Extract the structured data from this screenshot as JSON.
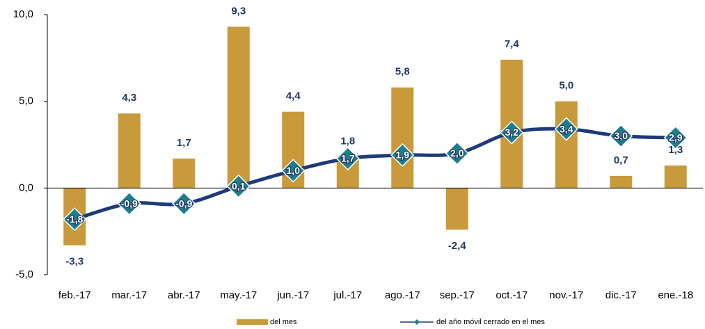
{
  "chart_data": {
    "type": "bar",
    "categories": [
      "feb.-17",
      "mar.-17",
      "abr.-17",
      "may.-17",
      "jun.-17",
      "jul.-17",
      "ago.-17",
      "sep.-17",
      "oct.-17",
      "nov.-17",
      "dic.-17",
      "ene.-18"
    ],
    "series": [
      {
        "name": "del mes",
        "type": "bar",
        "color": "#c89a3c",
        "values": [
          -3.3,
          4.3,
          1.7,
          9.3,
          4.4,
          1.8,
          5.8,
          -2.4,
          7.4,
          5.0,
          0.7,
          1.3
        ],
        "value_labels": [
          "-3,3",
          "4,3",
          "1,7",
          "9,3",
          "4,4",
          "1,8",
          "5,8",
          "-2,4",
          "7,4",
          "5,0",
          "0,7",
          "1,3"
        ]
      },
      {
        "name": "del año móvil cerrado en el mes",
        "type": "line",
        "color": "#1f3a7a",
        "marker_color": "#1d7f8c",
        "values": [
          -1.8,
          -0.9,
          -0.9,
          0.1,
          1.0,
          1.7,
          1.9,
          2.0,
          3.2,
          3.4,
          3.0,
          2.9
        ],
        "value_labels": [
          "-1,8",
          "-0,9",
          "-0,9",
          "0,1",
          "1,0",
          "1,7",
          "1,9",
          "2,0",
          "3,2",
          "3,4",
          "3,0",
          "2,9"
        ]
      }
    ],
    "ylim": [
      -5,
      10
    ],
    "yticks": [
      {
        "value": -5,
        "label": "-5,0"
      },
      {
        "value": 0,
        "label": "0,0"
      },
      {
        "value": 5,
        "label": "5,0"
      },
      {
        "value": 10,
        "label": "10,0"
      }
    ],
    "grid": false,
    "legend": "bottom"
  }
}
